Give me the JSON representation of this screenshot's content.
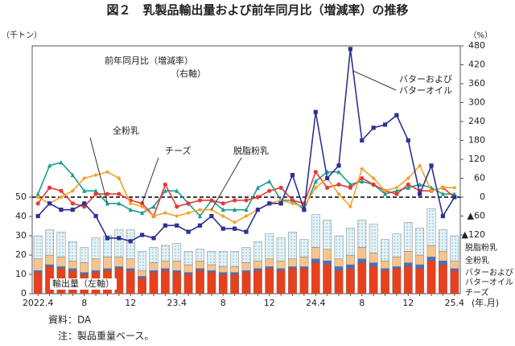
{
  "chart_data": {
    "type": "combo",
    "title": "図２　乳製品輸出量および前年同月比（増減率）の推移",
    "y_unit": "（千トン）",
    "y2_unit": "（%）",
    "x_unit": "(年.月)",
    "annotations": [
      "前年同月比（増減率）",
      "（右軸）",
      "輸出量（左軸）"
    ],
    "notes": [
      "資料：DA",
      "注：製品重量ベース。"
    ],
    "categories": [
      "2022.4",
      null,
      null,
      null,
      "8",
      null,
      null,
      null,
      "12",
      null,
      null,
      null,
      "23.4",
      null,
      null,
      null,
      "8",
      null,
      null,
      null,
      "12",
      null,
      null,
      null,
      "24.4",
      null,
      null,
      null,
      "8",
      null,
      null,
      null,
      "12",
      null,
      null,
      null,
      "25.4"
    ],
    "ylim": [
      0,
      128.3
    ],
    "yticks": [
      0,
      10,
      20,
      30,
      40,
      50
    ],
    "y2lim": [
      -306.4,
      480
    ],
    "y2ticks": [
      {
        "value": -120,
        "label": "▲120"
      },
      {
        "value": -60,
        "label": "▲60"
      },
      0,
      60,
      120,
      180,
      240,
      300,
      360,
      420,
      480
    ],
    "zero_line": true,
    "series": [
      {
        "name": "チーズ",
        "type": "bar",
        "color": "#e8401c",
        "values": [
          11,
          14,
          13,
          12,
          10,
          11,
          12,
          13,
          12,
          8,
          11,
          12,
          11,
          10,
          12,
          11,
          10,
          10,
          11,
          12,
          13,
          12,
          13,
          13,
          16,
          15,
          12,
          13,
          16,
          14,
          12,
          13,
          14,
          13,
          17,
          15,
          12
        ]
      },
      {
        "name": "バターおよびバターオイル",
        "type": "bar",
        "color": "#4a6fc1",
        "values": [
          1,
          1,
          1,
          1,
          1,
          1,
          1,
          1,
          1,
          1,
          1,
          1,
          1,
          1,
          1,
          1,
          1,
          1,
          1,
          1,
          1,
          1,
          1,
          1,
          2,
          2,
          2,
          2,
          2,
          2,
          1,
          1,
          2,
          2,
          2,
          2,
          1
        ]
      },
      {
        "name": "全粉乳",
        "type": "bar",
        "color": "#f7c48f",
        "values": [
          6,
          5,
          5,
          4,
          5,
          6,
          6,
          5,
          5,
          3,
          4,
          4,
          5,
          4,
          4,
          3,
          3,
          3,
          4,
          4,
          4,
          4,
          4,
          5,
          6,
          6,
          4,
          5,
          6,
          5,
          4,
          5,
          6,
          5,
          6,
          5,
          4
        ]
      },
      {
        "name": "脱脂粉乳",
        "type": "bar",
        "color": "#e3f3f7",
        "values": [
          12,
          13,
          13,
          10,
          8,
          11,
          11,
          14,
          15,
          10,
          8,
          8,
          9,
          7,
          6,
          7,
          8,
          8,
          8,
          10,
          13,
          12,
          14,
          9,
          17,
          15,
          12,
          14,
          14,
          15,
          11,
          12,
          15,
          14,
          19,
          11,
          13
        ]
      },
      {
        "name": "全粉乳",
        "type": "line",
        "axis": "y2",
        "color": "#1a9e8f",
        "marker": "triangle",
        "values": [
          10,
          100,
          110,
          70,
          20,
          20,
          -20,
          -20,
          -40,
          -50,
          -30,
          20,
          20,
          -20,
          -60,
          -10,
          -40,
          -40,
          -40,
          30,
          50,
          -10,
          -10,
          -40,
          50,
          80,
          80,
          40,
          50,
          40,
          10,
          20,
          30,
          40,
          30,
          10,
          10
        ]
      },
      {
        "name": "チーズ",
        "type": "line",
        "axis": "y2",
        "color": "#e53935",
        "marker": "circle",
        "values": [
          -20,
          30,
          20,
          -20,
          -30,
          10,
          10,
          10,
          -10,
          -20,
          -60,
          40,
          -30,
          -20,
          -10,
          -10,
          -20,
          -10,
          -10,
          0,
          20,
          30,
          -10,
          -20,
          80,
          30,
          40,
          30,
          60,
          40,
          20,
          10,
          40,
          20,
          20,
          30,
          0
        ]
      },
      {
        "name": "脱脂粉乳",
        "type": "line",
        "axis": "y2",
        "color": "#f4a22b",
        "marker": "diamond",
        "values": [
          0,
          -20,
          0,
          20,
          60,
          70,
          80,
          60,
          -20,
          -30,
          -60,
          -50,
          -60,
          -50,
          -40,
          -40,
          -60,
          -80,
          -60,
          -40,
          -20,
          -10,
          -20,
          -30,
          30,
          60,
          10,
          -30,
          90,
          60,
          20,
          30,
          60,
          100,
          20,
          30,
          30
        ]
      },
      {
        "name": "バターおよびバターオイル",
        "type": "line",
        "axis": "y2",
        "color": "#2e3192",
        "marker": "square",
        "values": [
          -60,
          -20,
          -40,
          -40,
          -20,
          -60,
          -130,
          -130,
          -140,
          -120,
          -130,
          -90,
          -90,
          -110,
          -90,
          -60,
          -100,
          -100,
          -110,
          -40,
          -20,
          -20,
          70,
          -40,
          270,
          60,
          100,
          470,
          180,
          220,
          230,
          260,
          180,
          10,
          100,
          -60,
          0
        ]
      }
    ]
  }
}
